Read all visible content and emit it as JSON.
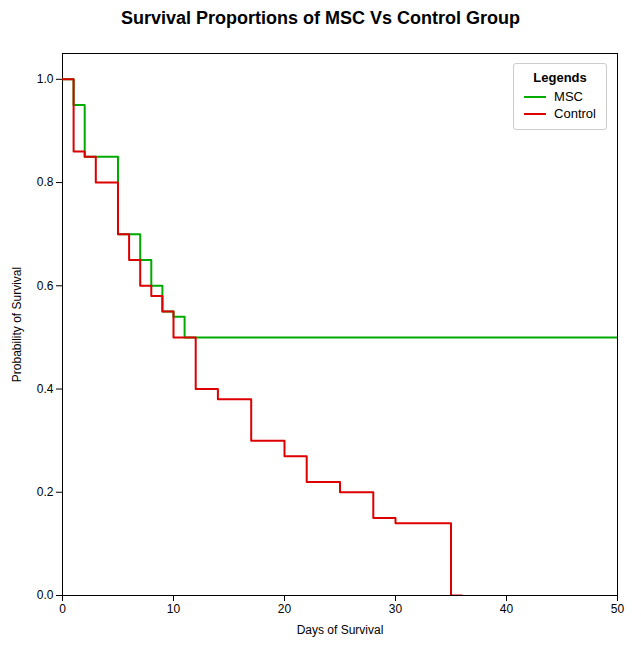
{
  "chart_data": {
    "type": "line",
    "title": "Survival Proportions of MSC Vs Control Group",
    "xlabel": "Days of Survival",
    "ylabel": "Probability of Survival",
    "legend_title": "Legends",
    "legend": "upper right",
    "grid": false,
    "series": [
      {
        "name": "MSC",
        "color": "#00aa00",
        "x": [
          0,
          1,
          1,
          2,
          2,
          5,
          5,
          7,
          7,
          8,
          8,
          9,
          9,
          10,
          10,
          11,
          11,
          13,
          13,
          50
        ],
        "values": [
          1.0,
          1.0,
          0.95,
          0.95,
          0.85,
          0.85,
          0.7,
          0.7,
          0.65,
          0.65,
          0.6,
          0.6,
          0.55,
          0.55,
          0.54,
          0.54,
          0.5,
          0.5,
          0.5,
          0.5
        ]
      },
      {
        "name": "Control",
        "color": "#dd0000",
        "x": [
          0,
          1,
          1,
          2,
          2,
          3,
          3,
          5,
          5,
          6,
          6,
          7,
          7,
          8,
          8,
          9,
          9,
          10,
          10,
          12,
          12,
          14,
          14,
          17,
          17,
          20,
          20,
          22,
          22,
          25,
          25,
          28,
          28,
          30,
          30,
          35,
          35,
          36
        ],
        "values": [
          1.0,
          1.0,
          0.86,
          0.86,
          0.85,
          0.85,
          0.8,
          0.8,
          0.7,
          0.7,
          0.65,
          0.65,
          0.6,
          0.6,
          0.58,
          0.58,
          0.55,
          0.55,
          0.5,
          0.5,
          0.4,
          0.4,
          0.38,
          0.38,
          0.3,
          0.3,
          0.27,
          0.27,
          0.22,
          0.22,
          0.2,
          0.2,
          0.15,
          0.15,
          0.14,
          0.14,
          0.0,
          0.0
        ]
      }
    ],
    "xlim": [
      0,
      50
    ],
    "ylim": [
      0.0,
      1.05
    ],
    "xticks": [
      0,
      10,
      20,
      30,
      40,
      50
    ],
    "yticks": [
      {
        "value": 0,
        "label": "0.0"
      },
      0.2,
      0.4,
      0.6,
      0.8,
      {
        "value": 1,
        "label": "1.0"
      }
    ]
  }
}
